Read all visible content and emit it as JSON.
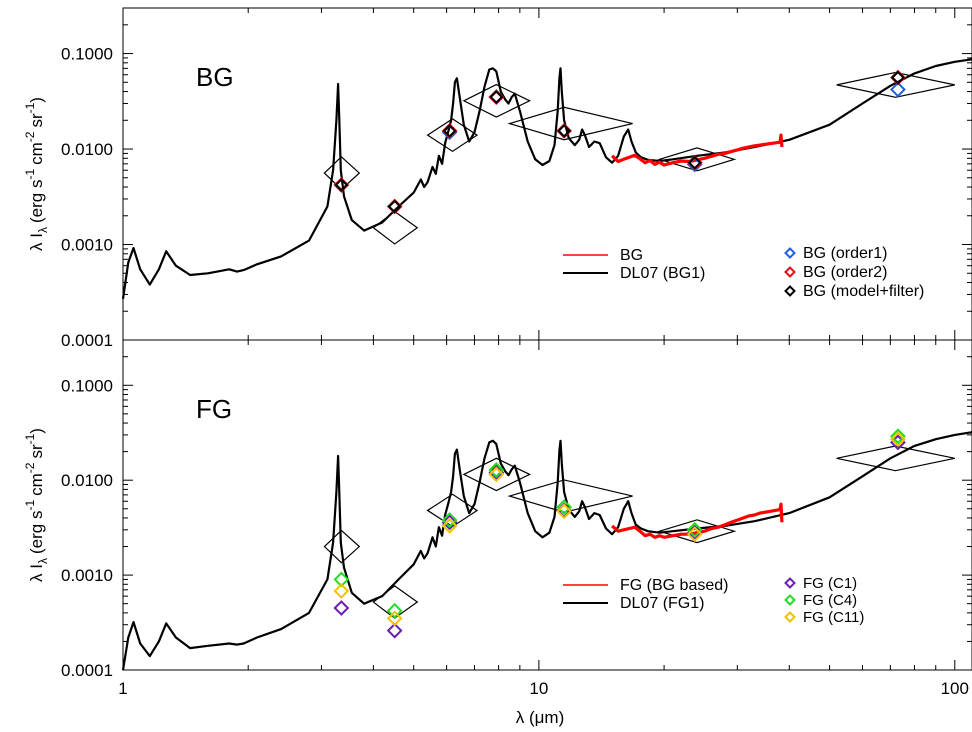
{
  "colors": {
    "bg_red": "#ff0000",
    "model_black": "#000000",
    "order1_blue": "#1f5fe0",
    "order2_red": "#e01010",
    "c1_purple": "#6a1fb0",
    "c4_green": "#22dd22",
    "c11_yellow": "#f2c200"
  },
  "chart_data": [
    {
      "type": "line",
      "panel_label": "BG",
      "x_scale": "log",
      "y_scale": "log",
      "xlim": [
        1,
        110
      ],
      "ylim": [
        0.0001,
        0.3
      ],
      "ylabel_main": "λ I",
      "ylabel_sub": "λ",
      "ylabel_units": "(erg s",
      "ylabel_units_2": "cm",
      "ylabel_units_3": "sr",
      "yticks": [
        0.0001,
        0.001,
        0.01,
        0.1
      ],
      "yticklabels": [
        "0.0001",
        "0.0010",
        "0.0100",
        "0.1000"
      ],
      "legend_lines": [
        "BG",
        "DL07 (BG1)"
      ],
      "legend_markers": [
        "BG (order1)",
        "BG (order2)",
        "BG (model+filter)"
      ],
      "series": [
        {
          "name": "DL07 (BG1)",
          "color": "#000000",
          "x": [
            1.0,
            1.03,
            1.06,
            1.1,
            1.16,
            1.22,
            1.27,
            1.34,
            1.45,
            1.6,
            1.8,
            1.88,
            1.95,
            2.1,
            2.4,
            2.8,
            3.1,
            3.2,
            3.26,
            3.29,
            3.31,
            3.34,
            3.4,
            3.55,
            3.8,
            4.2,
            4.6,
            5.0,
            5.2,
            5.3,
            5.4,
            5.55,
            5.65,
            5.75,
            5.85,
            5.95,
            6.05,
            6.15,
            6.22,
            6.28,
            6.35,
            6.45,
            6.6,
            6.8,
            7.0,
            7.2,
            7.4,
            7.6,
            7.75,
            7.9,
            8.1,
            8.3,
            8.45,
            8.6,
            8.75,
            9.0,
            9.4,
            9.8,
            10.2,
            10.6,
            10.9,
            11.1,
            11.2,
            11.27,
            11.35,
            11.5,
            11.8,
            12.2,
            12.5,
            12.7,
            12.9,
            13.2,
            13.6,
            14.0,
            14.5,
            15.0,
            15.5,
            16.0,
            16.4,
            16.7,
            17.1,
            17.6,
            18.3,
            19.5,
            21.0,
            24.0,
            28.0,
            33.0,
            40.0,
            50.0,
            60.0,
            70.0,
            80.0,
            90.0,
            100.0,
            110.0
          ],
          "y": [
            0.00027,
            0.00065,
            0.00092,
            0.00055,
            0.00038,
            0.00055,
            0.00085,
            0.0006,
            0.00048,
            0.0005,
            0.00055,
            0.00052,
            0.00054,
            0.00062,
            0.00075,
            0.0011,
            0.0025,
            0.006,
            0.02,
            0.048,
            0.022,
            0.006,
            0.0032,
            0.0018,
            0.0014,
            0.0017,
            0.0025,
            0.0035,
            0.0048,
            0.004,
            0.0045,
            0.0065,
            0.0055,
            0.0085,
            0.007,
            0.0115,
            0.015,
            0.02,
            0.03,
            0.05,
            0.055,
            0.035,
            0.018,
            0.012,
            0.015,
            0.025,
            0.045,
            0.068,
            0.07,
            0.065,
            0.04,
            0.033,
            0.03,
            0.035,
            0.038,
            0.025,
            0.012,
            0.0078,
            0.0068,
            0.0075,
            0.011,
            0.025,
            0.055,
            0.07,
            0.04,
            0.02,
            0.013,
            0.011,
            0.0125,
            0.016,
            0.014,
            0.0105,
            0.012,
            0.0115,
            0.0082,
            0.0072,
            0.0085,
            0.0135,
            0.016,
            0.012,
            0.0092,
            0.0082,
            0.0077,
            0.0075,
            0.0078,
            0.0085,
            0.0092,
            0.0105,
            0.0125,
            0.018,
            0.03,
            0.046,
            0.062,
            0.074,
            0.082,
            0.087
          ]
        },
        {
          "name": "BG",
          "color": "#ff0000",
          "x": [
            15.0,
            15.5,
            16.0,
            16.5,
            17.0,
            17.5,
            18.0,
            18.5,
            19.0,
            19.5,
            20.0,
            21.0,
            22.0,
            23.0,
            24.0,
            25.0,
            26.0,
            27.0,
            28.0,
            29.0,
            30.0,
            31.0,
            32.0,
            33.0,
            34.0,
            35.0,
            36.0,
            37.0,
            38.0,
            38.2,
            38.4
          ],
          "y": [
            0.0085,
            0.0074,
            0.0078,
            0.0082,
            0.0086,
            0.0079,
            0.0072,
            0.0076,
            0.0069,
            0.0073,
            0.0068,
            0.0072,
            0.0075,
            0.0074,
            0.0077,
            0.008,
            0.0084,
            0.0088,
            0.009,
            0.0094,
            0.0098,
            0.0102,
            0.0105,
            0.0108,
            0.011,
            0.0112,
            0.0114,
            0.0116,
            0.0118,
            0.014,
            0.0105
          ]
        }
      ],
      "markers": [
        {
          "name": "BG (order1)",
          "color": "#1f5fe0",
          "x": [
            6.1,
            23.7,
            73.0
          ],
          "y": [
            0.015,
            0.0069,
            0.042
          ]
        },
        {
          "name": "BG (order2)",
          "color": "#e01010",
          "x": [
            3.35,
            4.5,
            6.1,
            7.9,
            11.5,
            23.7,
            73.0
          ],
          "y": [
            0.0042,
            0.0025,
            0.0155,
            0.035,
            0.0155,
            0.0072,
            0.056
          ]
        },
        {
          "name": "BG (model+filter)",
          "color": "#000000",
          "x": [
            3.35,
            4.5,
            6.1,
            7.9,
            11.5,
            23.7,
            73.0
          ],
          "y": [
            0.0042,
            0.0025,
            0.0155,
            0.035,
            0.0155,
            0.0072,
            0.056
          ]
        }
      ],
      "filter_diamonds": [
        {
          "x": 3.35,
          "y": 0.0056,
          "xlo": 3.05,
          "xhi": 3.7,
          "dex": 0.17
        },
        {
          "x": 4.5,
          "y": 0.0015,
          "xlo": 4.0,
          "xhi": 5.1,
          "dex": 0.17
        },
        {
          "x": 6.2,
          "y": 0.014,
          "xlo": 5.4,
          "xhi": 7.1,
          "dex": 0.17
        },
        {
          "x": 7.9,
          "y": 0.032,
          "xlo": 6.6,
          "xhi": 9.5,
          "dex": 0.17
        },
        {
          "x": 11.5,
          "y": 0.0185,
          "xlo": 8.5,
          "xhi": 16.8,
          "dex": 0.17
        },
        {
          "x": 24.0,
          "y": 0.0078,
          "xlo": 19.5,
          "xhi": 29.5,
          "dex": 0.12
        },
        {
          "x": 72.0,
          "y": 0.047,
          "xlo": 52.0,
          "xhi": 100.0,
          "dex": 0.13
        }
      ]
    },
    {
      "type": "line",
      "panel_label": "FG",
      "x_scale": "log",
      "y_scale": "log",
      "xlim": [
        1,
        110
      ],
      "ylim": [
        0.0001,
        0.3
      ],
      "xlabel": "λ (μm)",
      "xticks": [
        1,
        10,
        100
      ],
      "xticklabels": [
        "1",
        "10",
        "100"
      ],
      "ylabel_main": "λ I",
      "ylabel_sub": "λ",
      "ylabel_units": "(erg s",
      "ylabel_units_2": "cm",
      "ylabel_units_3": "sr",
      "yticks": [
        0.0001,
        0.001,
        0.01,
        0.1
      ],
      "yticklabels": [
        "0.0001",
        "0.0010",
        "0.0100",
        "0.1000"
      ],
      "legend_lines": [
        "FG (BG based)",
        "DL07 (FG1)"
      ],
      "legend_markers": [
        "FG (C1)",
        "FG (C4)",
        "FG (C11)"
      ],
      "series": [
        {
          "name": "DL07 (FG1)",
          "color": "#000000",
          "x": [
            1.0,
            1.03,
            1.06,
            1.1,
            1.16,
            1.22,
            1.27,
            1.34,
            1.45,
            1.6,
            1.8,
            1.88,
            1.95,
            2.1,
            2.4,
            2.8,
            3.1,
            3.2,
            3.26,
            3.29,
            3.31,
            3.34,
            3.4,
            3.55,
            3.8,
            4.2,
            4.6,
            5.0,
            5.2,
            5.3,
            5.4,
            5.55,
            5.65,
            5.75,
            5.85,
            5.95,
            6.05,
            6.15,
            6.22,
            6.28,
            6.35,
            6.45,
            6.6,
            6.8,
            7.0,
            7.2,
            7.4,
            7.6,
            7.75,
            7.9,
            8.1,
            8.3,
            8.45,
            8.6,
            8.75,
            9.0,
            9.4,
            9.8,
            10.2,
            10.6,
            10.9,
            11.1,
            11.2,
            11.27,
            11.35,
            11.5,
            11.8,
            12.2,
            12.5,
            12.7,
            12.9,
            13.2,
            13.6,
            14.0,
            14.5,
            15.0,
            15.5,
            16.0,
            16.4,
            16.7,
            17.1,
            17.6,
            18.3,
            19.5,
            21.0,
            24.0,
            28.0,
            33.0,
            40.0,
            50.0,
            60.0,
            70.0,
            80.0,
            90.0,
            100.0,
            110.0
          ],
          "y": [
            0.0001,
            0.00022,
            0.00032,
            0.00019,
            0.00014,
            0.0002,
            0.00031,
            0.00022,
            0.00017,
            0.00018,
            0.00019,
            0.000185,
            0.00019,
            0.00022,
            0.00027,
            0.0004,
            0.0009,
            0.0022,
            0.0075,
            0.018,
            0.008,
            0.0022,
            0.0012,
            0.00065,
            0.0005,
            0.0006,
            0.0009,
            0.0013,
            0.0018,
            0.0015,
            0.0017,
            0.0025,
            0.002,
            0.0032,
            0.0026,
            0.0043,
            0.0056,
            0.0075,
            0.011,
            0.019,
            0.021,
            0.013,
            0.0068,
            0.0045,
            0.0056,
            0.0095,
            0.017,
            0.025,
            0.026,
            0.024,
            0.015,
            0.0124,
            0.0113,
            0.013,
            0.0142,
            0.0095,
            0.0045,
            0.0029,
            0.0025,
            0.0028,
            0.0041,
            0.0094,
            0.0205,
            0.026,
            0.015,
            0.0075,
            0.0049,
            0.0041,
            0.0047,
            0.006,
            0.0052,
            0.0039,
            0.0045,
            0.0043,
            0.0031,
            0.0027,
            0.0032,
            0.005,
            0.006,
            0.0045,
            0.0034,
            0.0031,
            0.0029,
            0.0028,
            0.0029,
            0.0031,
            0.0033,
            0.0037,
            0.0045,
            0.0066,
            0.011,
            0.017,
            0.023,
            0.027,
            0.03,
            0.032
          ]
        },
        {
          "name": "FG (BG based)",
          "color": "#ff0000",
          "x": [
            15.0,
            15.5,
            16.0,
            16.5,
            17.0,
            17.5,
            18.0,
            18.5,
            19.0,
            19.5,
            20.0,
            21.0,
            22.0,
            23.0,
            24.0,
            25.0,
            26.0,
            27.0,
            28.0,
            29.0,
            30.0,
            31.0,
            32.0,
            33.0,
            34.0,
            35.0,
            36.0,
            37.0,
            38.0,
            38.2,
            38.4
          ],
          "y": [
            0.0033,
            0.0029,
            0.003,
            0.0031,
            0.0032,
            0.0029,
            0.0026,
            0.0027,
            0.0025,
            0.0026,
            0.0025,
            0.0026,
            0.0027,
            0.0027,
            0.0028,
            0.0029,
            0.0031,
            0.0032,
            0.0034,
            0.0036,
            0.0038,
            0.004,
            0.0042,
            0.0043,
            0.0045,
            0.0046,
            0.0047,
            0.0048,
            0.0049,
            0.0056,
            0.0036
          ]
        }
      ],
      "markers": [
        {
          "name": "FG (C1)",
          "color": "#6a1fb0",
          "x": [
            3.35,
            4.5,
            6.1,
            7.9,
            11.5,
            23.7,
            73.0
          ],
          "y": [
            0.00045,
            0.00026,
            0.0036,
            0.012,
            0.0048,
            0.0028,
            0.025
          ]
        },
        {
          "name": "FG (C4)",
          "color": "#22dd22",
          "x": [
            3.35,
            4.5,
            6.1,
            7.9,
            11.5,
            23.7,
            73.0
          ],
          "y": [
            0.0009,
            0.00042,
            0.0038,
            0.0128,
            0.0052,
            0.003,
            0.029
          ]
        },
        {
          "name": "FG (C11)",
          "color": "#f2c200",
          "x": [
            3.35,
            4.5,
            6.1,
            7.9,
            11.5,
            23.7,
            73.0
          ],
          "y": [
            0.00068,
            0.00035,
            0.0033,
            0.0115,
            0.0047,
            0.0027,
            0.027
          ]
        }
      ],
      "filter_diamonds": [
        {
          "x": 3.35,
          "y": 0.002,
          "xlo": 3.05,
          "xhi": 3.7,
          "dex": 0.17
        },
        {
          "x": 4.5,
          "y": 0.00052,
          "xlo": 4.0,
          "xhi": 5.1,
          "dex": 0.17
        },
        {
          "x": 6.2,
          "y": 0.0048,
          "xlo": 5.4,
          "xhi": 7.1,
          "dex": 0.17
        },
        {
          "x": 7.9,
          "y": 0.0115,
          "xlo": 6.6,
          "xhi": 9.5,
          "dex": 0.17
        },
        {
          "x": 11.5,
          "y": 0.0068,
          "xlo": 8.5,
          "xhi": 16.8,
          "dex": 0.17
        },
        {
          "x": 24.0,
          "y": 0.0029,
          "xlo": 19.5,
          "xhi": 29.5,
          "dex": 0.12
        },
        {
          "x": 72.0,
          "y": 0.017,
          "xlo": 52.0,
          "xhi": 100.0,
          "dex": 0.13
        }
      ]
    }
  ]
}
